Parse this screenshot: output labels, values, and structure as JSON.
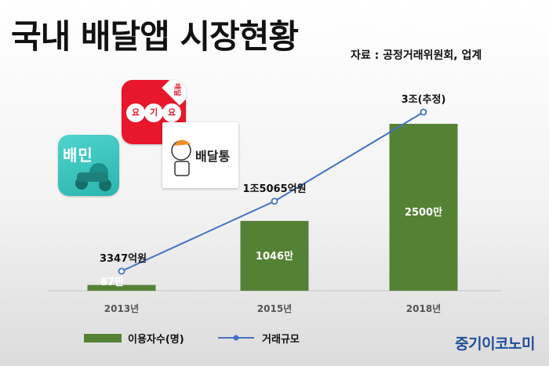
{
  "title": "국내 배달앱 시장현황",
  "source": "자료 : 공정거래위원회, 업계",
  "brand": "중기이코노미",
  "logos": {
    "baemin": "배민",
    "yogiyo": [
      "요",
      "기",
      "요"
    ],
    "yogiyo_badge": "배달",
    "baedaltong": "배달통"
  },
  "chart_data": {
    "type": "bar",
    "categories": [
      "2013년",
      "2015년",
      "2018년"
    ],
    "series": [
      {
        "name": "이용자수(명)",
        "type": "bar",
        "values": [
          870000,
          10460000,
          25000000
        ],
        "labels": [
          "87만",
          "1046만",
          "2500만"
        ],
        "color": "#548235"
      },
      {
        "name": "거래규모",
        "type": "line",
        "values": [
          3347,
          15065,
          30000
        ],
        "labels": [
          "3347억원",
          "1조5065억원",
          "3조(추정)"
        ],
        "color": "#4472c4"
      }
    ],
    "legend": "bottom"
  }
}
